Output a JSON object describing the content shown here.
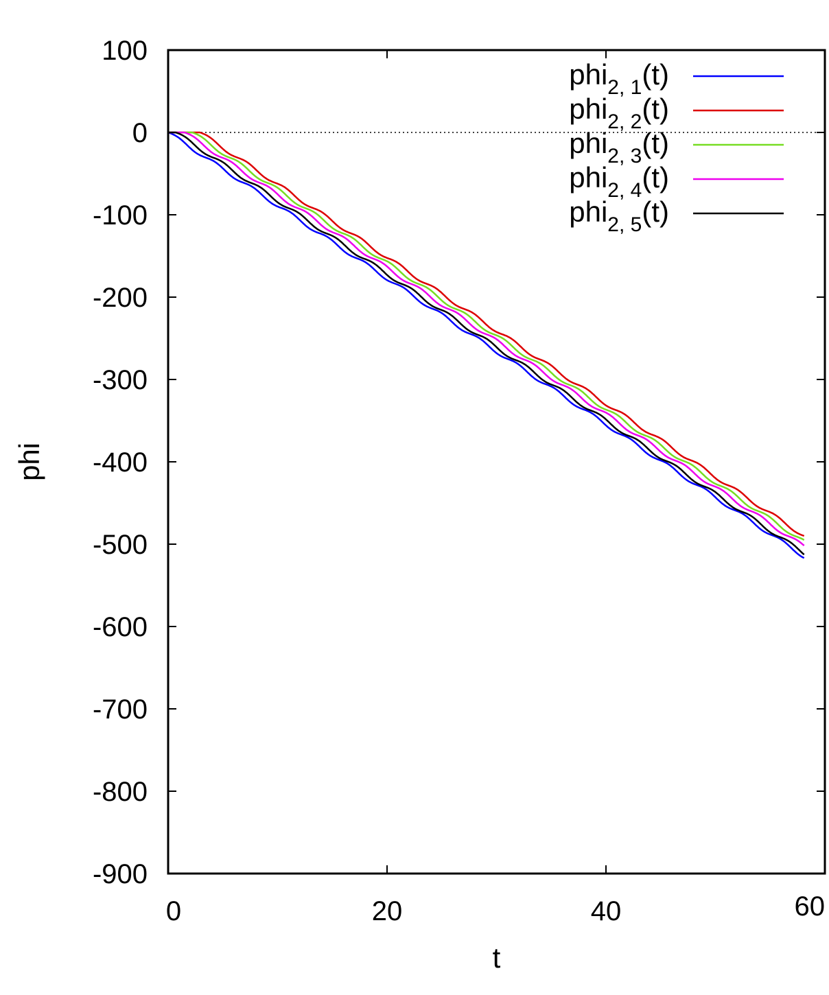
{
  "chart_data": {
    "type": "line",
    "title": "",
    "xlabel": "t",
    "ylabel": "phi",
    "xlim": [
      0,
      60
    ],
    "ylim": [
      -900,
      100
    ],
    "xticks": [
      0,
      20,
      40,
      60
    ],
    "yticks": [
      100,
      0,
      -100,
      -200,
      -300,
      -400,
      -500,
      -600,
      -700,
      -800,
      -900
    ],
    "zero_line": true,
    "legend_position": "top-right",
    "series": [
      {
        "name": "phi",
        "sub": "2, 1",
        "suffix": "(t)",
        "color": "#0000ff",
        "x": [
          0,
          58.1
        ],
        "y": [
          0,
          -515
        ],
        "offset_t": 0.0
      },
      {
        "name": "phi",
        "sub": "2, 2",
        "suffix": "(t)",
        "color": "#dd0000",
        "x": [
          0,
          58.1
        ],
        "y": [
          0,
          -490
        ],
        "offset_t": 2.9
      },
      {
        "name": "phi",
        "sub": "2, 3",
        "suffix": "(t)",
        "color": "#77dd22",
        "x": [
          0,
          58.1
        ],
        "y": [
          0,
          -497
        ],
        "offset_t": 2.2
      },
      {
        "name": "phi",
        "sub": "2, 4",
        "suffix": "(t)",
        "color": "#ee00ee",
        "x": [
          0,
          58.1
        ],
        "y": [
          0,
          -503
        ],
        "offset_t": 1.5
      },
      {
        "name": "phi",
        "sub": "2, 5",
        "suffix": "(t)",
        "color": "#000000",
        "x": [
          0,
          58.1
        ],
        "y": [
          0,
          -511
        ],
        "offset_t": 0.7
      }
    ]
  }
}
